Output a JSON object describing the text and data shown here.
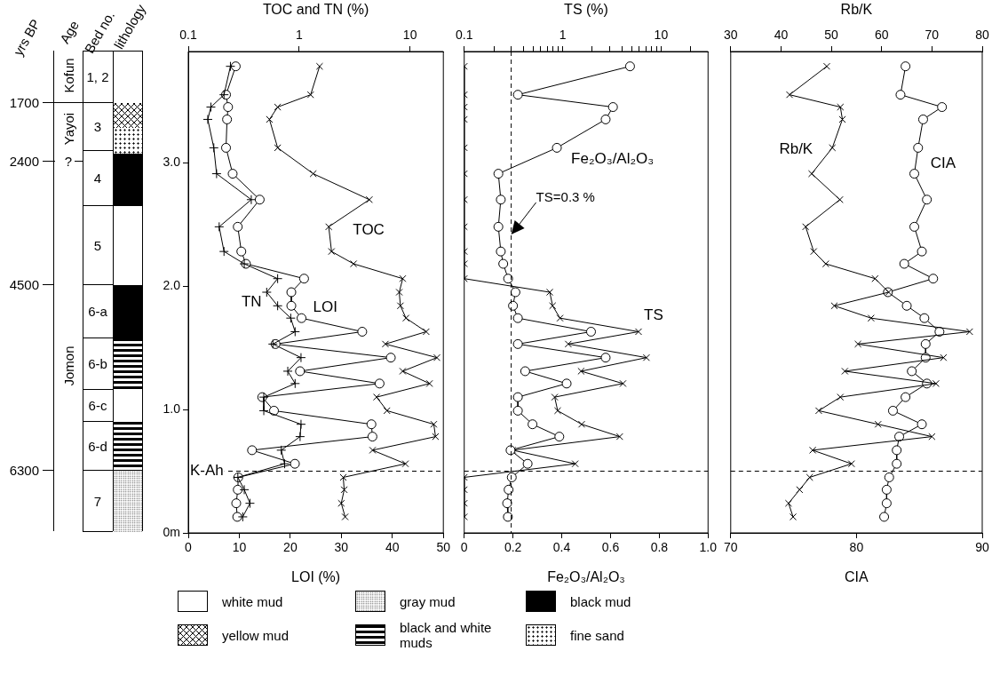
{
  "chart_data": [
    {
      "type": "other",
      "annotations": [
        "yrs BP",
        "Age",
        "Bed no.",
        "lithology",
        "1700",
        "2400",
        "4500",
        "6300",
        "Kofun",
        "Yayoi",
        "?",
        "Jomon",
        "1, 2",
        "3",
        "4",
        "5",
        "6-a",
        "6-b",
        "6-c",
        "6-d",
        "7",
        "white mud",
        "gray mud",
        "black mud",
        "yellow mud",
        "black and white muds",
        "fine sand"
      ]
    },
    {
      "type": "line",
      "x2label": "TOC and TN (%)",
      "xlabel": "LOI (%)",
      "log": "x2",
      "xlim": [
        0,
        50
      ],
      "xticks": [
        0,
        10,
        20,
        30,
        40,
        50
      ],
      "x2lim": [
        0.1,
        20
      ],
      "x2ticks": [
        0.1,
        1,
        10
      ],
      "ylim": [
        0,
        3.9
      ],
      "yticks": [
        {
          "value": 0,
          "label": "0m"
        },
        {
          "value": 1,
          "label": "1.0"
        },
        {
          "value": 2,
          "label": "2.0"
        },
        {
          "value": 3,
          "label": "3.0"
        }
      ],
      "ref_lines": [
        {
          "axis": "y",
          "value": 0.5,
          "label": "K-Ah",
          "line_style": "dashed"
        }
      ],
      "series": [
        {
          "name": "TOC",
          "color": "#000000",
          "axis": "x2",
          "marker": "x",
          "x": [
            1.53,
            1.27,
            0.64,
            0.54,
            0.64,
            1.34,
            4.3,
            1.85,
            1.96,
            3.1,
            8.6,
            8.0,
            8.2,
            9.2,
            14,
            6.0,
            17.5,
            8.6,
            15,
            5.0,
            6.2,
            16.4,
            17,
            4.6,
            9.1,
            2.5,
            2.55,
            2.4,
            2.6
          ],
          "values": [
            3.78,
            3.55,
            3.45,
            3.35,
            3.12,
            2.91,
            2.7,
            2.48,
            2.28,
            2.18,
            2.06,
            1.95,
            1.84,
            1.74,
            1.63,
            1.53,
            1.42,
            1.31,
            1.21,
            1.1,
            0.99,
            0.88,
            0.78,
            0.67,
            0.56,
            0.45,
            0.35,
            0.24,
            0.13
          ]
        },
        {
          "name": "TN",
          "color": "#000000",
          "axis": "x2",
          "marker": "cross",
          "x": [
            0.24,
            0.21,
            0.16,
            0.15,
            0.17,
            0.18,
            0.37,
            0.19,
            0.21,
            0.32,
            0.64,
            0.51,
            0.64,
            0.84,
            0.92,
            0.58,
            1.04,
            0.79,
            0.92,
            0.48,
            0.48,
            1.04,
            1.02,
            0.69,
            0.74,
            0.28,
            0.32,
            0.36,
            0.31
          ],
          "values": [
            3.78,
            3.55,
            3.45,
            3.35,
            3.12,
            2.91,
            2.7,
            2.48,
            2.28,
            2.18,
            2.06,
            1.95,
            1.84,
            1.74,
            1.63,
            1.53,
            1.42,
            1.31,
            1.21,
            1.1,
            0.99,
            0.88,
            0.78,
            0.67,
            0.56,
            0.45,
            0.35,
            0.24,
            0.13
          ]
        },
        {
          "name": "LOI",
          "color": "#000000",
          "marker": "circle",
          "x": [
            9.3,
            7.4,
            7.8,
            7.6,
            7.4,
            8.7,
            14.0,
            9.7,
            10.4,
            11.3,
            22.7,
            20.2,
            20.2,
            22.2,
            34.1,
            17.1,
            39.7,
            21.9,
            37.5,
            14.5,
            16.8,
            35.9,
            36.1,
            12.5,
            20.9,
            9.8,
            9.7,
            9.4,
            9.6
          ],
          "values": [
            3.78,
            3.55,
            3.45,
            3.35,
            3.12,
            2.91,
            2.7,
            2.48,
            2.28,
            2.18,
            2.06,
            1.95,
            1.84,
            1.74,
            1.63,
            1.53,
            1.42,
            1.31,
            1.21,
            1.1,
            0.99,
            0.88,
            0.78,
            0.67,
            0.56,
            0.45,
            0.35,
            0.24,
            0.13
          ]
        }
      ]
    },
    {
      "type": "line",
      "x2label": "TS (%)",
      "xlabel": "Fe₂O₃/Al₂O₃",
      "log": "x2",
      "tick_labels": "x",
      "xlim": [
        0,
        1
      ],
      "xticks": [
        0,
        0.2,
        0.4,
        0.6,
        0.8,
        {
          "value": 1,
          "label": "1.0"
        }
      ],
      "x2lim": [
        0.1,
        30
      ],
      "x2ticks": [
        0.1,
        {
          "value": 0.2,
          "label": null
        },
        {
          "value": 0.3,
          "label": null
        },
        {
          "value": 0.4,
          "label": null
        },
        {
          "value": 0.5,
          "label": null
        },
        {
          "value": 0.6,
          "label": null
        },
        {
          "value": 0.7,
          "label": null
        },
        {
          "value": 0.8,
          "label": null
        },
        {
          "value": 0.9,
          "label": null
        },
        1,
        {
          "value": 2,
          "label": null
        },
        {
          "value": 3,
          "label": null
        },
        {
          "value": 4,
          "label": null
        },
        {
          "value": 5,
          "label": null
        },
        {
          "value": 6,
          "label": null
        },
        {
          "value": 7,
          "label": null
        },
        {
          "value": 8,
          "label": null
        },
        {
          "value": 9,
          "label": null
        },
        10,
        {
          "value": 20,
          "label": null
        }
      ],
      "ylim": [
        0,
        3.9
      ],
      "ref_lines": [
        {
          "axis": "y",
          "value": 0.5,
          "line_style": "dashed"
        },
        {
          "axis": "x2",
          "value": 0.3,
          "label": "TS=0.3 %",
          "line_style": "dashed"
        }
      ],
      "series": [
        {
          "name": "Fe₂O₃/Al₂O₃",
          "color": "#000000",
          "marker": "circle",
          "x": [
            0.68,
            0.22,
            0.61,
            0.58,
            0.38,
            0.14,
            0.15,
            0.14,
            0.15,
            0.16,
            0.18,
            0.21,
            0.2,
            0.22,
            0.52,
            0.22,
            0.58,
            0.25,
            0.42,
            0.22,
            0.22,
            0.28,
            0.39,
            0.19,
            0.26,
            0.195,
            0.182,
            0.176,
            0.179
          ],
          "values": [
            3.78,
            3.55,
            3.45,
            3.35,
            3.12,
            2.91,
            2.7,
            2.48,
            2.28,
            2.18,
            2.06,
            1.95,
            1.84,
            1.74,
            1.63,
            1.53,
            1.42,
            1.31,
            1.21,
            1.1,
            0.99,
            0.88,
            0.78,
            0.67,
            0.56,
            0.45,
            0.35,
            0.24,
            0.13
          ]
        },
        {
          "name": "TS",
          "color": "#000000",
          "axis": "x2",
          "marker": "x",
          "x": [
            0.1,
            0.1,
            0.1,
            0.1,
            0.1,
            0.1,
            0.1,
            0.1,
            0.1,
            0.1,
            0.1,
            0.74,
            0.79,
            0.94,
            5.9,
            1.14,
            7.1,
            1.54,
            4.1,
            0.83,
            0.89,
            1.56,
            3.8,
            0.31,
            1.34,
            0.1,
            0.1,
            0.1,
            0.1
          ],
          "values": [
            3.78,
            3.55,
            3.45,
            3.35,
            3.12,
            2.91,
            2.7,
            2.48,
            2.28,
            2.18,
            2.06,
            1.95,
            1.84,
            1.74,
            1.63,
            1.53,
            1.42,
            1.31,
            1.21,
            1.1,
            0.99,
            0.88,
            0.78,
            0.67,
            0.56,
            0.45,
            0.35,
            0.24,
            0.13
          ]
        }
      ]
    },
    {
      "type": "line",
      "x2label": "Rb/K",
      "xlabel": "CIA",
      "tick_labels": "x",
      "xlim": [
        70,
        90
      ],
      "xticks": [
        70,
        80,
        90
      ],
      "x2lim": [
        30,
        80
      ],
      "x2ticks": [
        30,
        40,
        50,
        60,
        70,
        80
      ],
      "ylim": [
        0,
        3.9
      ],
      "ref_lines": [
        {
          "axis": "y",
          "value": 0.5,
          "line_style": "dashed"
        }
      ],
      "series": [
        {
          "name": "Rb/K",
          "color": "#000000",
          "axis": "x2",
          "marker": "x",
          "x": [
            49.1,
            41.7,
            51.8,
            52.2,
            50.2,
            46.1,
            51.7,
            44.9,
            46.5,
            48.9,
            58.7,
            61.4,
            50.6,
            57.9,
            77.5,
            55.3,
            72.3,
            52.7,
            70.8,
            51.8,
            47.5,
            59.3,
            70.0,
            46.3,
            54.0,
            45.7,
            43.7,
            41.5,
            42.4
          ],
          "values": [
            3.78,
            3.55,
            3.45,
            3.35,
            3.12,
            2.91,
            2.7,
            2.48,
            2.28,
            2.18,
            2.06,
            1.95,
            1.84,
            1.74,
            1.63,
            1.53,
            1.42,
            1.31,
            1.21,
            1.1,
            0.99,
            0.88,
            0.78,
            0.67,
            0.56,
            0.45,
            0.35,
            0.24,
            0.13
          ]
        },
        {
          "name": "CIA",
          "color": "#000000",
          "marker": "circle",
          "x": [
            83.9,
            83.5,
            86.8,
            85.3,
            84.9,
            84.6,
            85.6,
            84.6,
            85.2,
            83.8,
            86.1,
            82.5,
            84.0,
            85.4,
            86.6,
            85.5,
            85.5,
            84.4,
            85.6,
            83.9,
            82.9,
            85.2,
            83.4,
            83.2,
            83.2,
            82.6,
            82.4,
            82.4,
            82.2
          ],
          "values": [
            3.78,
            3.55,
            3.45,
            3.35,
            3.12,
            2.91,
            2.7,
            2.48,
            2.28,
            2.18,
            2.06,
            1.95,
            1.84,
            1.74,
            1.63,
            1.53,
            1.42,
            1.31,
            1.21,
            1.1,
            0.99,
            0.88,
            0.78,
            0.67,
            0.56,
            0.45,
            0.35,
            0.24,
            0.13
          ]
        }
      ]
    }
  ]
}
